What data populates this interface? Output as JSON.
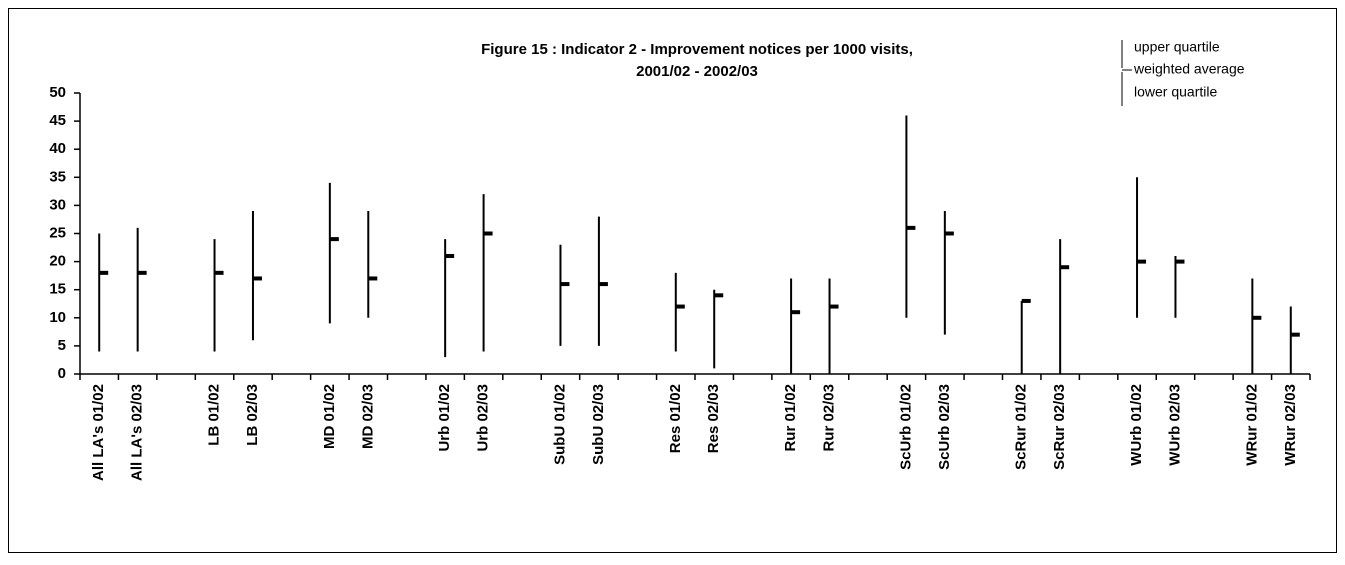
{
  "chart_data": {
    "type": "hilo",
    "title": [
      "Figure 15 : Indicator 2 - Improvement notices per 1000 visits,",
      "2001/02 - 2002/03"
    ],
    "categories": [
      "All LA's 01/02",
      "All LA's 02/03",
      null,
      "LB 01/02",
      "LB 02/03",
      null,
      "MD 01/02",
      "MD 02/03",
      null,
      "Urb 01/02",
      "Urb 02/03",
      null,
      "SubU 01/02",
      "SubU 02/03",
      null,
      "Res 01/02",
      "Res 02/03",
      null,
      "Rur 01/02",
      "Rur 02/03",
      null,
      "ScUrb 01/02",
      "ScUrb 02/03",
      null,
      "ScRur 01/02",
      "ScRur 02/03",
      null,
      "WUrb 01/02",
      "WUrb 02/03",
      null,
      "WRur 01/02",
      "WRur 02/03"
    ],
    "series": [
      {
        "name": "upper quartile",
        "color": "#000000",
        "values": [
          25,
          26,
          null,
          24,
          29,
          null,
          34,
          29,
          null,
          24,
          32,
          null,
          23,
          28,
          null,
          18,
          15,
          null,
          17,
          17,
          null,
          46,
          29,
          null,
          13,
          24,
          null,
          35,
          21,
          null,
          17,
          12
        ]
      },
      {
        "name": "weighted average",
        "color": "#000000",
        "values": [
          18,
          18,
          null,
          18,
          17,
          null,
          24,
          17,
          null,
          21,
          25,
          null,
          16,
          16,
          null,
          12,
          14,
          null,
          11,
          12,
          null,
          26,
          25,
          null,
          13,
          19,
          null,
          20,
          20,
          null,
          10,
          7
        ]
      },
      {
        "name": "lower quartile",
        "color": "#000000",
        "values": [
          4,
          4,
          null,
          4,
          6,
          null,
          9,
          10,
          null,
          3,
          4,
          null,
          5,
          5,
          null,
          4,
          1,
          null,
          0,
          0,
          null,
          10,
          7,
          null,
          0,
          0,
          null,
          10,
          10,
          null,
          0,
          0
        ]
      }
    ],
    "ylim": [
      0,
      50
    ],
    "yticks": [
      0,
      5,
      10,
      15,
      20,
      25,
      30,
      35,
      40,
      45,
      50
    ],
    "legend": "top-right"
  }
}
